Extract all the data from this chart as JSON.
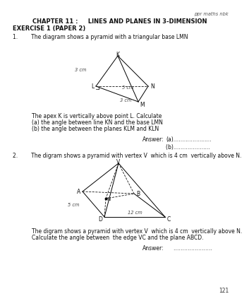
{
  "bg_color": "#ffffff",
  "page_number": "121",
  "header_right": "ppr maths nbk",
  "chapter_title": "CHAPTER 11 :     LINES AND PLANES IN 3-DIMENSION",
  "exercise_title": "EXERCISE 1 (PAPER 2)",
  "q1_text": "1.        The diagram shows a pyramid with a triangular base LMN",
  "q1_sub1": "The apex K is vertically above point L. Calculate",
  "q1_sub2": "(a) the angle between line KN and the base LMN",
  "q1_sub3": "(b) the angle between the planes KLM and KLN",
  "q1_ans_label": "Answer:",
  "q1_ans_a": "(a)……..……........",
  "q1_ans_b": "(b)……….…….....  ",
  "q2_text": "2.        The digram shows a pyramid with vertex V  which is 4 cm  vertically above N.",
  "q2_sub1": "The digram shows a pyramid with vertex V  which is 4 cm  vertically above N.",
  "q2_sub2": "Calculate the angle between  the edge VC and the plane ABCD.",
  "q2_ans_label": "Answer:",
  "q2_ans": "………………….  ",
  "font_size_body": 5.5,
  "font_size_title": 6.0,
  "font_size_header": 4.8
}
